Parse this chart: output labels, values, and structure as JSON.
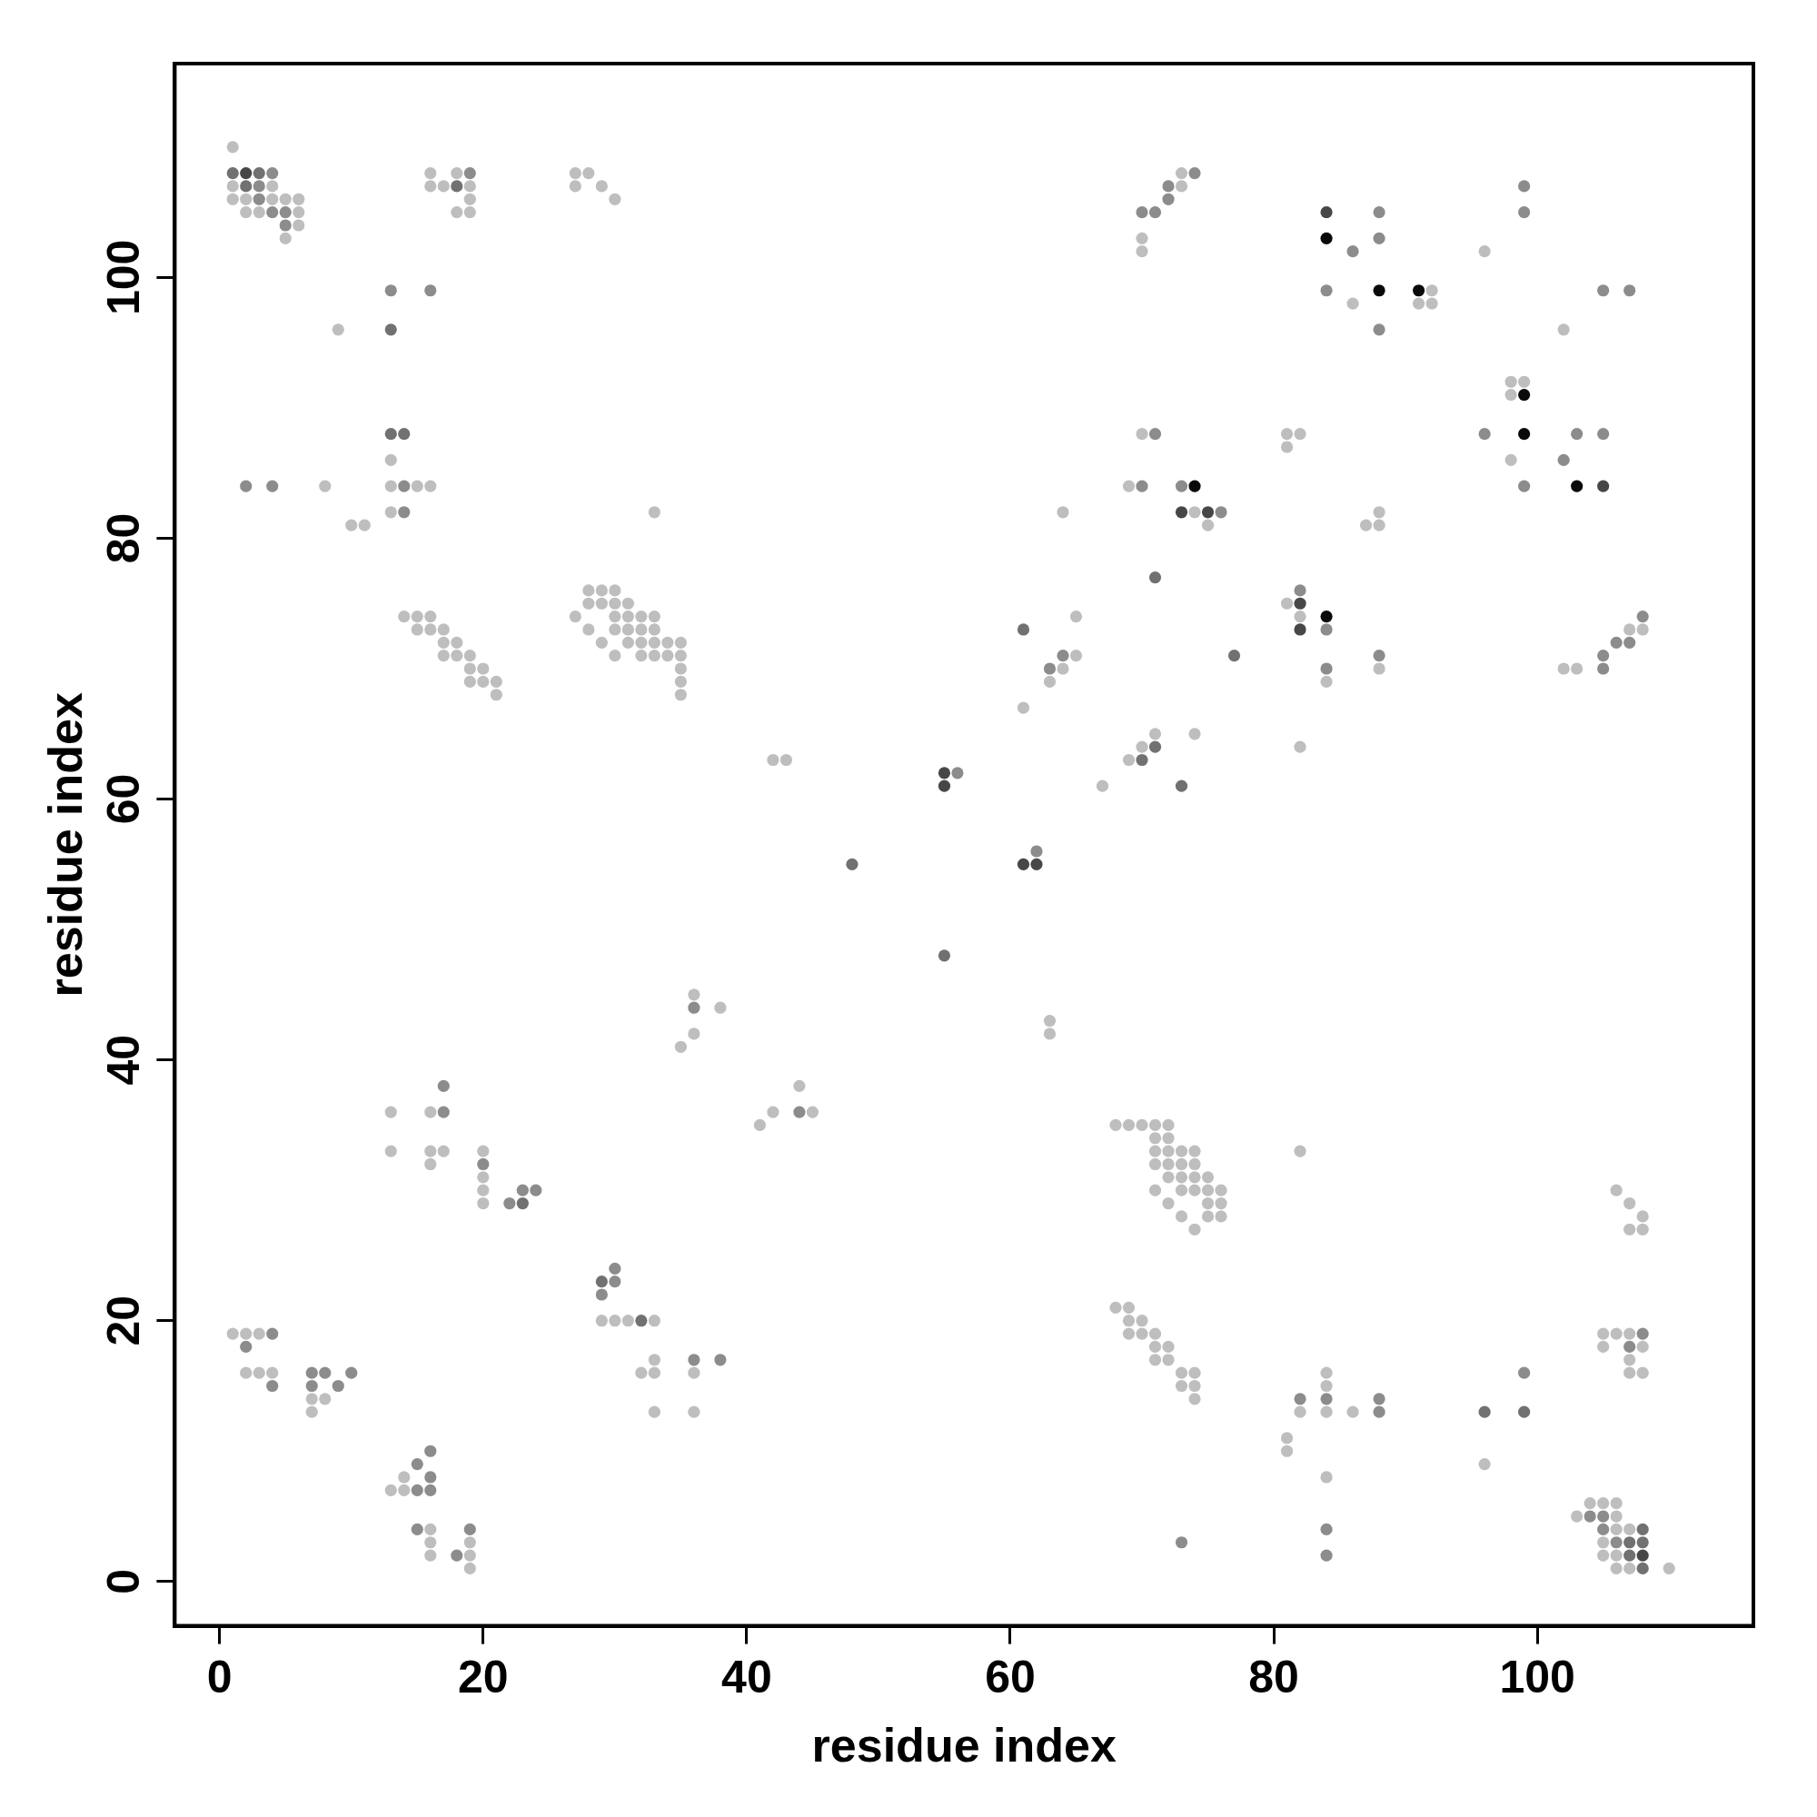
{
  "chart_data": {
    "type": "scatter",
    "xlabel": "residue index",
    "ylabel": "residue index",
    "xlim": [
      -3.4,
      116.4
    ],
    "ylim": [
      -3.4,
      116.4
    ],
    "xticks": [
      0,
      20,
      40,
      60,
      80,
      100
    ],
    "yticks": [
      0,
      20,
      40,
      60,
      80,
      100
    ],
    "grid": false,
    "legend": false,
    "marker": "circle",
    "series": [
      {
        "color": "#bebebe",
        "x": [
          1,
          1,
          4,
          1,
          2,
          4,
          5,
          6,
          2,
          3,
          6,
          6,
          5,
          16,
          18,
          16,
          17,
          19,
          19,
          18,
          19,
          27,
          28,
          27,
          29,
          30,
          9,
          13,
          13,
          15,
          16,
          8,
          13,
          10,
          11,
          33,
          14,
          15,
          16,
          15,
          16,
          17,
          17,
          18,
          17,
          18,
          19,
          19,
          20,
          19,
          20,
          21,
          21,
          28,
          29,
          30,
          28,
          29,
          30,
          31,
          27,
          30,
          31,
          32,
          33,
          28,
          30,
          31,
          32,
          33,
          29,
          31,
          32,
          33,
          34,
          35,
          30,
          32,
          33,
          34,
          35,
          35,
          35,
          35,
          42,
          43,
          61,
          65,
          64,
          63,
          65,
          64,
          63,
          63,
          67,
          69,
          70,
          71,
          74,
          73,
          73,
          70,
          70,
          70,
          69,
          74,
          75,
          81,
          82,
          81,
          81,
          82,
          84,
          82,
          86,
          92,
          91,
          92,
          88,
          88,
          87,
          88,
          96,
          102,
          98,
          99,
          98,
          98,
          102,
          103,
          107,
          108,
          13,
          13,
          16,
          16,
          17,
          16,
          20,
          20,
          20,
          20,
          29,
          30,
          31,
          33,
          33,
          32,
          33,
          36,
          33,
          36,
          35,
          36,
          36,
          38,
          41,
          42,
          44,
          45,
          1,
          2,
          3,
          2,
          3,
          4,
          7,
          8,
          7,
          13,
          14,
          14,
          16,
          16,
          16,
          19,
          19,
          19,
          68,
          69,
          70,
          71,
          72,
          71,
          72,
          71,
          72,
          73,
          74,
          71,
          72,
          73,
          74,
          72,
          73,
          74,
          75,
          71,
          73,
          74,
          75,
          76,
          72,
          75,
          76,
          73,
          75,
          76,
          74,
          82,
          68,
          69,
          69,
          70,
          69,
          70,
          71,
          71,
          72,
          71,
          72,
          73,
          74,
          73,
          74,
          74,
          81,
          81,
          82,
          84,
          84,
          84,
          86,
          84,
          96,
          106,
          107,
          108,
          107,
          108,
          105,
          106,
          107,
          105,
          108,
          107,
          107,
          108,
          103,
          104,
          105,
          106,
          106,
          106,
          107,
          105,
          105,
          106,
          106,
          107,
          110
        ],
        "values": [
          110,
          107,
          107,
          106,
          106,
          106,
          106,
          106,
          105,
          105,
          105,
          104,
          103,
          108,
          108,
          107,
          107,
          107,
          106,
          105,
          105,
          108,
          108,
          107,
          107,
          106,
          96,
          86,
          84,
          84,
          84,
          84,
          82,
          81,
          81,
          82,
          74,
          74,
          74,
          73,
          73,
          73,
          72,
          72,
          71,
          71,
          71,
          70,
          70,
          69,
          69,
          69,
          68,
          76,
          76,
          76,
          75,
          75,
          75,
          75,
          74,
          74,
          74,
          74,
          74,
          73,
          73,
          73,
          73,
          73,
          72,
          72,
          72,
          72,
          72,
          72,
          71,
          71,
          71,
          71,
          71,
          70,
          69,
          68,
          63,
          63,
          67,
          74,
          70,
          69,
          71,
          82,
          43,
          42,
          61,
          63,
          64,
          65,
          65,
          108,
          107,
          103,
          102,
          88,
          84,
          82,
          81,
          88,
          88,
          87,
          75,
          74,
          69,
          64,
          98,
          99,
          98,
          98,
          82,
          81,
          81,
          70,
          102,
          96,
          92,
          92,
          91,
          86,
          70,
          70,
          73,
          73,
          36,
          33,
          36,
          33,
          33,
          32,
          33,
          31,
          30,
          29,
          20,
          20,
          20,
          20,
          17,
          16,
          16,
          16,
          13,
          13,
          41,
          42,
          45,
          44,
          35,
          36,
          38,
          36,
          19,
          19,
          19,
          16,
          16,
          16,
          14,
          14,
          13,
          7,
          7,
          8,
          4,
          3,
          2,
          3,
          2,
          1,
          35,
          35,
          35,
          35,
          35,
          34,
          34,
          33,
          33,
          33,
          33,
          32,
          32,
          32,
          32,
          31,
          31,
          31,
          31,
          30,
          30,
          30,
          30,
          30,
          29,
          29,
          29,
          28,
          28,
          28,
          27,
          33,
          21,
          21,
          20,
          20,
          19,
          19,
          19,
          18,
          18,
          17,
          17,
          16,
          16,
          15,
          15,
          14,
          11,
          10,
          13,
          16,
          15,
          13,
          13,
          8,
          9,
          30,
          29,
          28,
          27,
          27,
          19,
          19,
          19,
          18,
          18,
          17,
          16,
          16,
          5,
          6,
          6,
          6,
          5,
          4,
          4,
          3,
          2,
          2,
          1,
          1,
          1
        ]
      },
      {
        "color": "#8c8c8c",
        "x": [
          4,
          3,
          3,
          4,
          5,
          5,
          19,
          13,
          16,
          14,
          2,
          4,
          14,
          74,
          72,
          72,
          70,
          71,
          71,
          70,
          73,
          76,
          64,
          63,
          56,
          62,
          82,
          84,
          84,
          88,
          88,
          88,
          86,
          84,
          88,
          99,
          99,
          105,
          107,
          96,
          103,
          105,
          102,
          99,
          105,
          105,
          106,
          107,
          108,
          17,
          17,
          20,
          22,
          23,
          24,
          30,
          30,
          29,
          36,
          38,
          36,
          44,
          4,
          2,
          4,
          7,
          8,
          10,
          7,
          9,
          15,
          15,
          16,
          16,
          16,
          15,
          19,
          18,
          73,
          82,
          84,
          88,
          88,
          84,
          84,
          99,
          108,
          107,
          104,
          105,
          105,
          106
        ],
        "values": [
          108,
          107,
          106,
          105,
          105,
          104,
          108,
          99,
          99,
          84,
          84,
          84,
          82,
          108,
          107,
          106,
          105,
          105,
          88,
          84,
          84,
          82,
          71,
          70,
          62,
          56,
          76,
          73,
          70,
          71,
          105,
          103,
          102,
          99,
          96,
          107,
          105,
          99,
          99,
          88,
          88,
          88,
          86,
          84,
          71,
          70,
          72,
          72,
          74,
          36,
          38,
          32,
          29,
          30,
          30,
          24,
          23,
          22,
          17,
          17,
          44,
          36,
          19,
          18,
          15,
          16,
          16,
          16,
          15,
          15,
          7,
          9,
          10,
          8,
          7,
          4,
          4,
          2,
          3,
          14,
          14,
          14,
          13,
          4,
          2,
          16,
          19,
          18,
          5,
          5,
          4,
          3
        ]
      },
      {
        "color": "#717171",
        "x": [
          1,
          2,
          13,
          70,
          71,
          73,
          71,
          77,
          61,
          48,
          55,
          96,
          99,
          107,
          107,
          108,
          108,
          108,
          23,
          29,
          32,
          3,
          13,
          14,
          18
        ],
        "values": [
          108,
          107,
          96,
          63,
          64,
          61,
          77,
          71,
          73,
          55,
          48,
          13,
          13,
          2,
          3,
          3,
          1,
          4,
          29,
          23,
          20,
          108,
          88,
          88,
          107
        ]
      },
      {
        "color": "#474747",
        "x": [
          2,
          84,
          73,
          75,
          82,
          82,
          105,
          55,
          55,
          61,
          62,
          108
        ],
        "values": [
          108,
          105,
          82,
          82,
          75,
          73,
          84,
          62,
          61,
          55,
          55,
          2
        ]
      },
      {
        "color": "#0a0a0a",
        "x": [
          84,
          88,
          91,
          99,
          99,
          103,
          74,
          84
        ],
        "values": [
          103,
          99,
          99,
          91,
          88,
          84,
          84,
          74
        ]
      }
    ]
  }
}
